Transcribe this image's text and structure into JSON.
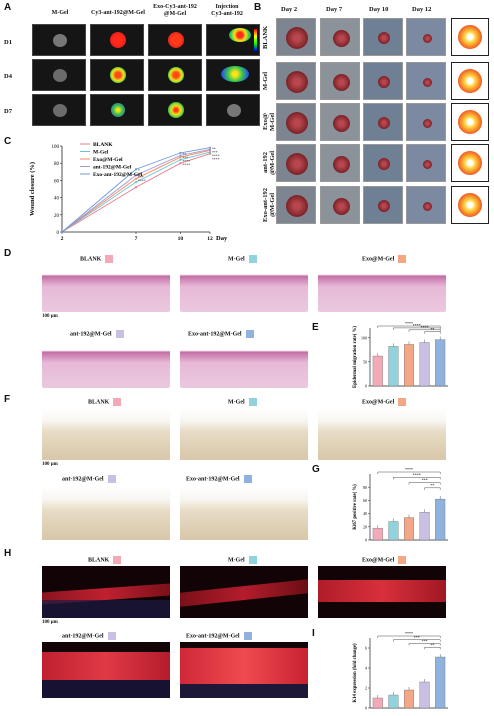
{
  "panels": {
    "A": "A",
    "B": "B",
    "C": "C",
    "D": "D",
    "E": "E",
    "F": "F",
    "G": "G",
    "H": "H",
    "I": "I"
  },
  "panelA": {
    "columns": [
      "M-Gel",
      "Cy3-ant-192@M-Gel",
      "Exo-Cy3-ant-192\n@M-Gel",
      "Injection\nCy3-ant-192"
    ],
    "rows": [
      "D1",
      "D4",
      "D7"
    ]
  },
  "panelB": {
    "days": [
      "Day 2",
      "Day 7",
      "Day 10",
      "Day 12"
    ],
    "rows": [
      "BLANK",
      "M-Gel",
      "Exo@\nM-Gel",
      "ant-192\n@M-Gel",
      "Exo-ant-192\n@M-Gel"
    ]
  },
  "groups": [
    "BLANK",
    "M-Gel",
    "Exo@M-Gel",
    "ant-192@M-Gel",
    "Exo-ant-192@M-Gel"
  ],
  "group_colors": [
    "#f4a9b8",
    "#92d2dc",
    "#f3a785",
    "#c9bfe3",
    "#8fb3dc"
  ],
  "scalebars": {
    "D": "100 μm",
    "F": "100 μm",
    "H": "100 μm"
  },
  "chart_data": [
    {
      "type": "line",
      "panel": "C",
      "ylabel": "Wound closure (%)",
      "xlabel": "Day",
      "x": [
        2,
        7,
        10,
        12
      ],
      "xticks": [
        "2",
        "7",
        "10",
        "12"
      ],
      "ylim": [
        0,
        100
      ],
      "yticks": [
        "0",
        "20",
        "40",
        "60",
        "80",
        "100"
      ],
      "series": [
        {
          "name": "BLANK",
          "values": [
            0,
            52,
            80,
            91
          ],
          "color": "#e87a8c"
        },
        {
          "name": "M-Gel",
          "values": [
            0,
            58,
            84,
            93
          ],
          "color": "#6cc0cf"
        },
        {
          "name": "Exo@M-Gel",
          "values": [
            0,
            62,
            87,
            95
          ],
          "color": "#f08a60"
        },
        {
          "name": "ant-192@M-Gel",
          "values": [
            0,
            66,
            89,
            96
          ],
          "color": "#a898d4"
        },
        {
          "name": "Exo-ant-192@M-Gel",
          "values": [
            0,
            73,
            92,
            98
          ],
          "color": "#6a9bd4"
        }
      ],
      "annotations": [
        "*",
        "**",
        "***",
        "****",
        "**",
        "***",
        "****",
        "****",
        "**",
        "***",
        "****",
        "****"
      ],
      "legend": "top-left"
    },
    {
      "type": "bar",
      "panel": "E",
      "ylabel": "Epidermal migration rate( %)",
      "categories": [
        "BLANK",
        "M-Gel",
        "Exo@M-Gel",
        "ant-192@M-Gel",
        "Exo-ant-192@M-Gel"
      ],
      "values": [
        62,
        82,
        86,
        90,
        96
      ],
      "ylim": [
        0,
        120
      ],
      "yticks": [
        "0",
        "50",
        "100"
      ],
      "significance": [
        "****",
        "****",
        "****",
        "**"
      ]
    },
    {
      "type": "bar",
      "panel": "G",
      "ylabel": "Ki67 positive rate( %)",
      "categories": [
        "BLANK",
        "M-Gel",
        "Exo@M-Gel",
        "ant-192@M-Gel",
        "Exo-ant-192@M-Gel"
      ],
      "values": [
        18,
        28,
        34,
        42,
        62
      ],
      "ylim": [
        0,
        100
      ],
      "yticks": [
        "0",
        "20",
        "40",
        "60",
        "80"
      ],
      "significance": [
        "****",
        "****",
        "***",
        "**"
      ]
    },
    {
      "type": "bar",
      "panel": "I",
      "ylabel": "K14 expression (fold change)",
      "categories": [
        "BLANK",
        "M-Gel",
        "Exo@M-Gel",
        "ant-192@M-Gel",
        "Exo-ant-192@M-Gel"
      ],
      "values": [
        1.0,
        1.3,
        1.8,
        2.6,
        5.1
      ],
      "ylim": [
        0,
        7
      ],
      "yticks": [
        "0",
        "2",
        "4",
        "6"
      ],
      "significance": [
        "****",
        "***",
        "***",
        "**"
      ]
    }
  ]
}
